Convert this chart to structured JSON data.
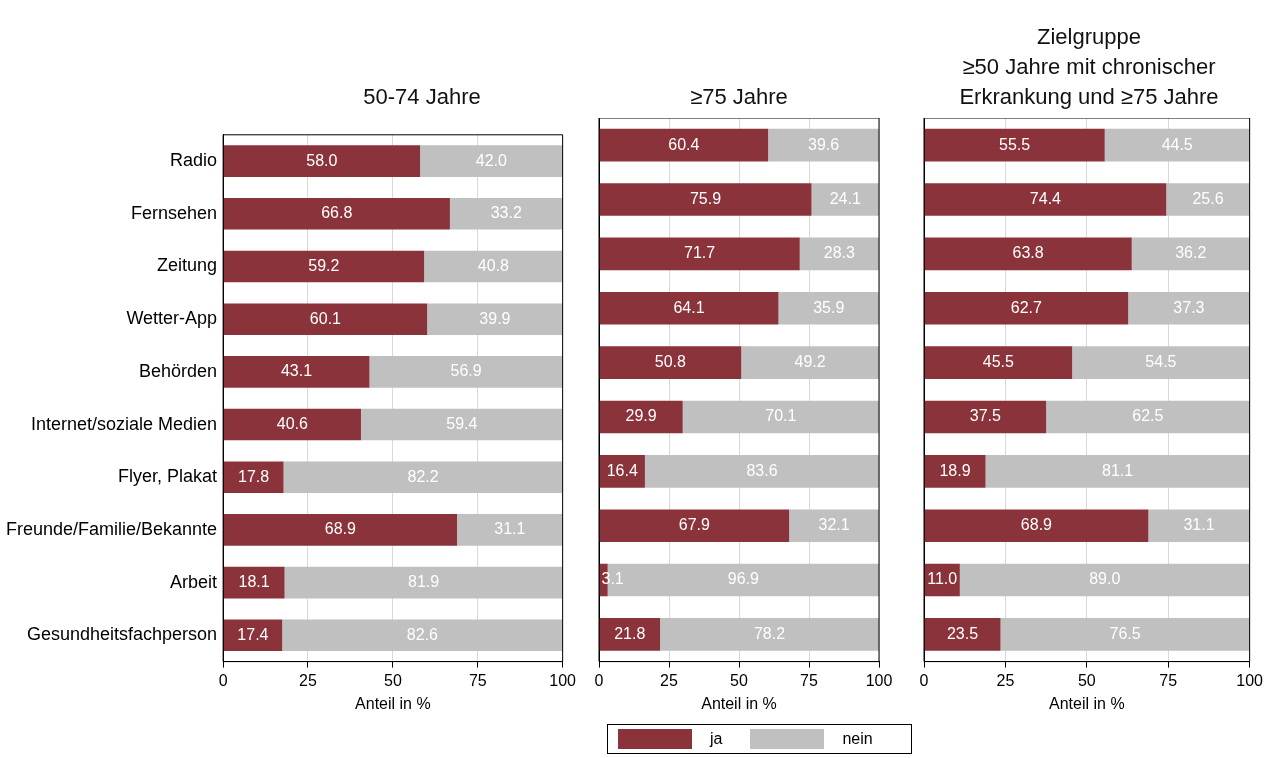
{
  "chart_data": [
    {
      "type": "bar",
      "orientation": "horizontal",
      "stacked": true,
      "title": "50-74 Jahre",
      "xlabel": "Anteil in %",
      "categories": [
        "Radio",
        "Fernsehen",
        "Zeitung",
        "Wetter-App",
        "Behörden",
        "Internet/soziale Medien",
        "Flyer, Plakat",
        "Freunde/Familie/Bekannte",
        "Arbeit",
        "Gesundheitsfachperson"
      ],
      "series": [
        {
          "color": "#8b333b",
          "values": [
            58.0,
            66.8,
            59.2,
            60.1,
            43.1,
            40.6,
            17.8,
            68.9,
            18.1,
            17.4
          ],
          "value_labels": [
            "58.0",
            "66.8",
            "59.2",
            "60.1",
            "43.1",
            "40.6",
            "17.8",
            "68.9",
            "18.1",
            "17.4"
          ]
        },
        {
          "color": "#c0c0c0",
          "values": [
            42.0,
            33.2,
            40.8,
            39.9,
            56.9,
            59.4,
            82.2,
            31.1,
            81.9,
            82.6
          ],
          "value_labels": [
            "42.0",
            "33.2",
            "40.8",
            "39.9",
            "56.9",
            "59.4",
            "82.2",
            "31.1",
            "81.9",
            "82.6"
          ]
        }
      ],
      "xlim": [
        0,
        100
      ],
      "xticks": [
        0,
        25,
        50,
        75,
        100
      ],
      "grid": "x"
    },
    {
      "type": "bar",
      "orientation": "horizontal",
      "stacked": true,
      "title": "≥75 Jahre",
      "xlabel": "Anteil in %",
      "categories": [
        null,
        null,
        null,
        null,
        null,
        null,
        null,
        null,
        null,
        null
      ],
      "series": [
        {
          "name": "ja",
          "color": "#8b333b",
          "values": [
            60.4,
            75.9,
            71.7,
            64.1,
            50.8,
            29.9,
            16.4,
            67.9,
            3.1,
            21.8
          ],
          "value_labels": [
            "60.4",
            "75.9",
            "71.7",
            "64.1",
            "50.8",
            "29.9",
            "16.4",
            "67.9",
            "3.1",
            "21.8"
          ]
        },
        {
          "name": "nein",
          "color": "#c0c0c0",
          "values": [
            39.6,
            24.1,
            28.3,
            35.9,
            49.2,
            70.1,
            83.6,
            32.1,
            96.9,
            78.2
          ],
          "value_labels": [
            "39.6",
            "24.1",
            "28.3",
            "35.9",
            "49.2",
            "70.1",
            "83.6",
            "32.1",
            "96.9",
            "78.2"
          ]
        }
      ],
      "xlim": [
        0,
        100
      ],
      "xticks": [
        0,
        25,
        50,
        75,
        100
      ],
      "grid": "x",
      "tick_labels": "x",
      "legend": "bottom"
    },
    {
      "type": "bar",
      "orientation": "horizontal",
      "stacked": true,
      "title": "Zielgruppe\n≥50 Jahre mit chronischer\nErkrankung und ≥75 Jahre",
      "xlabel": "Anteil in %",
      "categories": [
        null,
        null,
        null,
        null,
        null,
        null,
        null,
        null,
        null,
        null
      ],
      "series": [
        {
          "color": "#8b333b",
          "values": [
            55.5,
            74.4,
            63.8,
            62.7,
            45.5,
            37.5,
            18.9,
            68.9,
            11.0,
            23.5
          ],
          "value_labels": [
            "55.5",
            "74.4",
            "63.8",
            "62.7",
            "45.5",
            "37.5",
            "18.9",
            "68.9",
            "11.0",
            "23.5"
          ]
        },
        {
          "color": "#c0c0c0",
          "values": [
            44.5,
            25.6,
            36.2,
            37.3,
            54.5,
            62.5,
            81.1,
            31.1,
            89.0,
            76.5
          ],
          "value_labels": [
            "44.5",
            "25.6",
            "36.2",
            "37.3",
            "54.5",
            "62.5",
            "81.1",
            "31.1",
            "89.0",
            "76.5"
          ]
        }
      ],
      "xlim": [
        0,
        100
      ],
      "xticks": [
        0,
        25,
        50,
        75,
        100
      ],
      "grid": "x",
      "tick_labels": "x"
    }
  ]
}
